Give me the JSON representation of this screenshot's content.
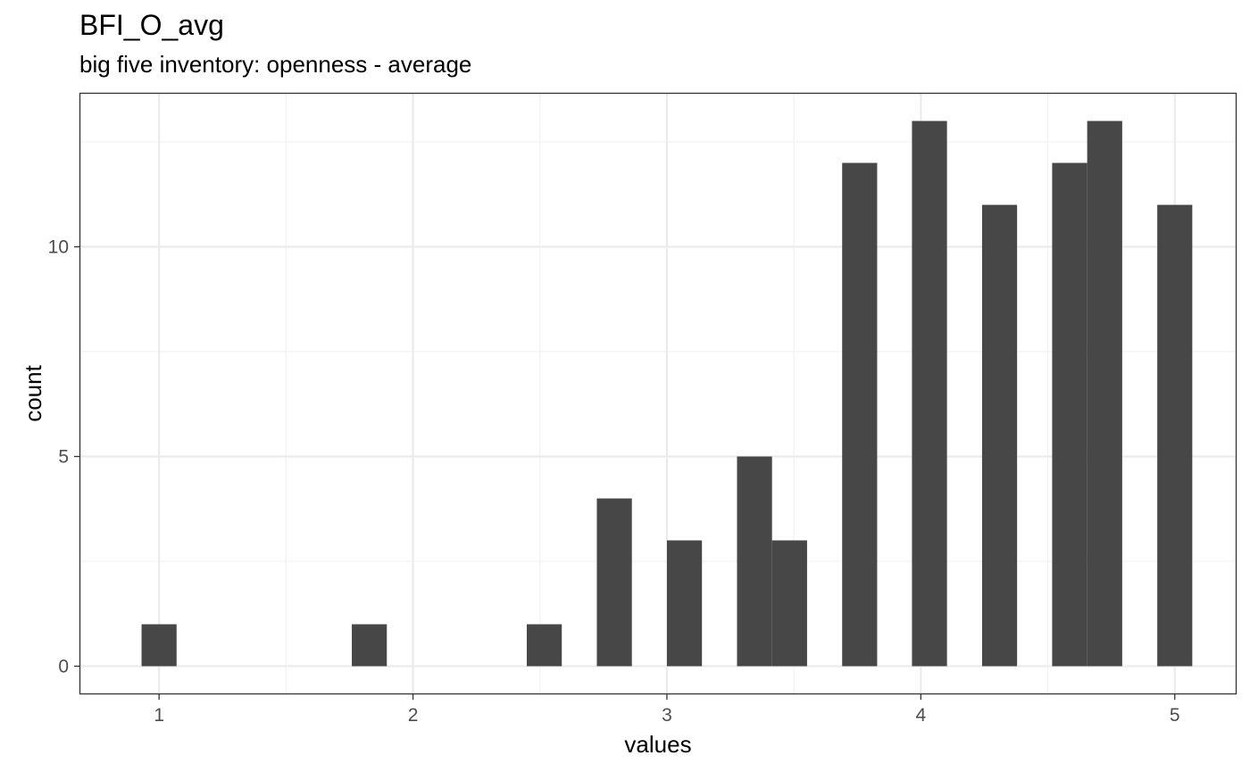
{
  "chart_data": {
    "type": "bar",
    "title": "BFI_O_avg",
    "subtitle": "big five inventory: openness - average",
    "xlabel": "values",
    "ylabel": "count",
    "xlim": [
      0.69,
      5.24
    ],
    "ylim": [
      -0.65,
      13.65
    ],
    "x_ticks": [
      1,
      2,
      3,
      4,
      5
    ],
    "x_ticks_minor": [
      1.5,
      2.5,
      3.5,
      4.5
    ],
    "y_ticks": [
      0,
      5,
      10
    ],
    "y_ticks_minor": [
      2.5,
      7.5,
      12.5
    ],
    "grid": true,
    "bin_width": 0.1379,
    "bin_centers": [
      1.0,
      1.138,
      1.276,
      1.414,
      1.552,
      1.69,
      1.828,
      1.966,
      2.103,
      2.241,
      2.379,
      2.517,
      2.655,
      2.793,
      2.931,
      3.069,
      3.207,
      3.345,
      3.483,
      3.621,
      3.759,
      3.897,
      4.034,
      4.172,
      4.31,
      4.448,
      4.586,
      4.724,
      4.862,
      5.0
    ],
    "values": [
      1,
      0,
      0,
      0,
      0,
      0,
      1,
      0,
      0,
      0,
      0,
      1,
      0,
      4,
      0,
      3,
      0,
      5,
      3,
      0,
      12,
      0,
      13,
      0,
      11,
      0,
      12,
      13,
      0,
      11
    ],
    "bar_color": "#474747",
    "panel_border_color": "#333333",
    "grid_major_color": "#ebebeb",
    "grid_minor_color": "#f2f2f2"
  }
}
